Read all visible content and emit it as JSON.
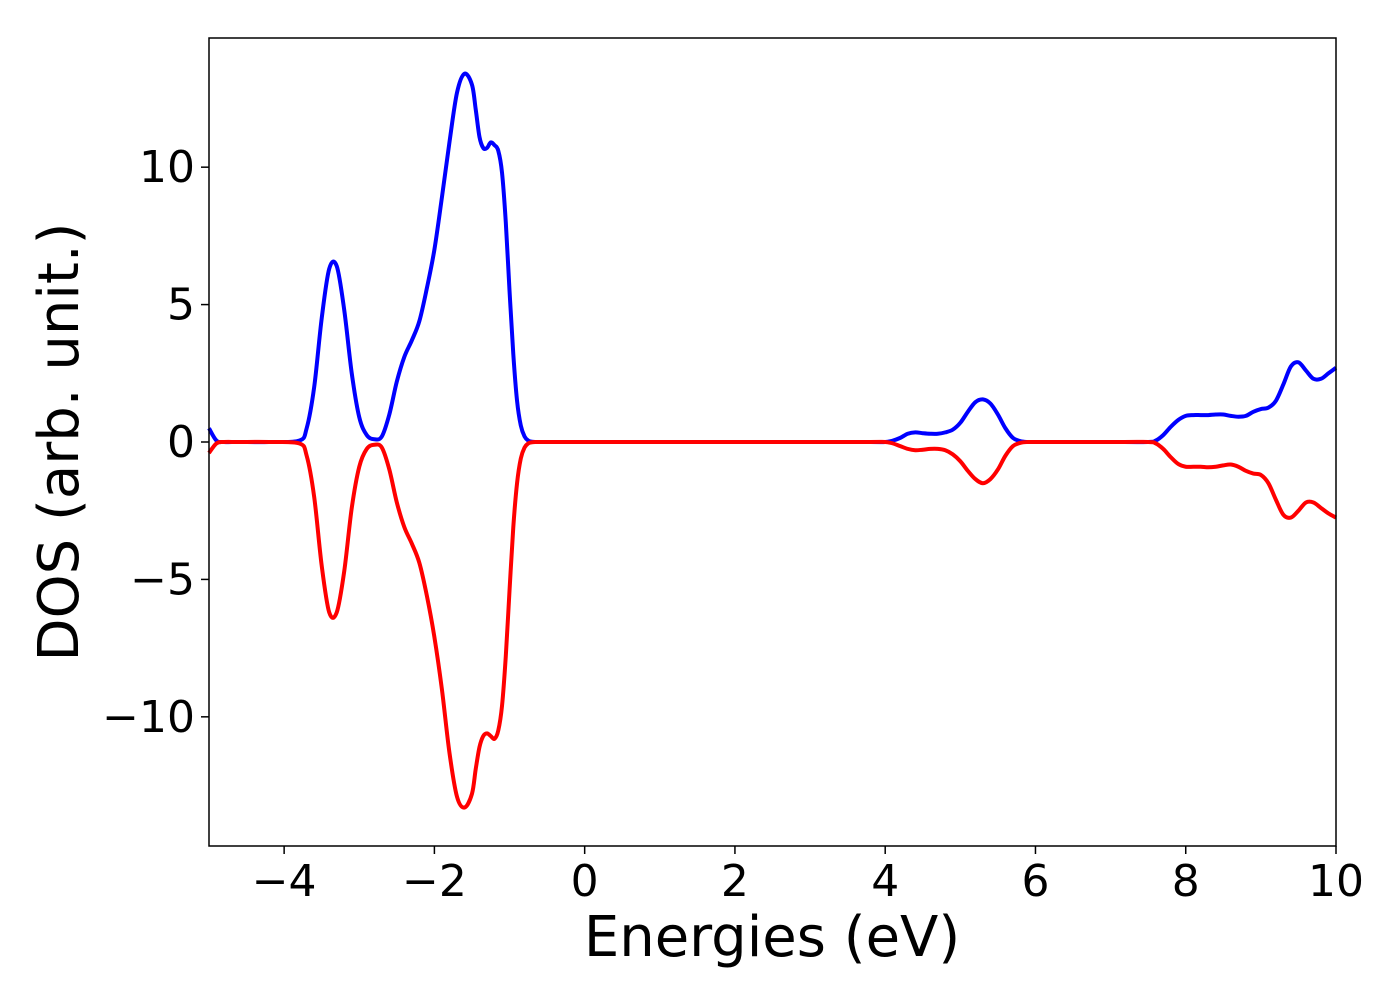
{
  "chart_data": {
    "type": "line",
    "xlabel": "Energies (eV)",
    "ylabel": "DOS (arb. unit.)",
    "xlim": [
      -5,
      10
    ],
    "ylim": [
      -14.7,
      14.7
    ],
    "grid": false,
    "x_ticks": [
      -4,
      -2,
      0,
      2,
      4,
      6,
      8,
      10
    ],
    "x_tick_labels": [
      "−4",
      "−2",
      "0",
      "2",
      "4",
      "6",
      "8",
      "10"
    ],
    "y_ticks": [
      -10,
      -5,
      0,
      5,
      10
    ],
    "y_tick_labels": [
      "−10",
      "−5",
      "0",
      "5",
      "10"
    ],
    "series": [
      {
        "color": "#0000ff",
        "x": [
          -5.0,
          -4.9,
          -4.8,
          -4.6,
          -4.2,
          -3.8,
          -3.7,
          -3.6,
          -3.5,
          -3.4,
          -3.3,
          -3.2,
          -3.1,
          -3.0,
          -2.9,
          -2.8,
          -2.7,
          -2.6,
          -2.5,
          -2.4,
          -2.3,
          -2.2,
          -2.1,
          -2.0,
          -1.9,
          -1.8,
          -1.7,
          -1.6,
          -1.5,
          -1.45,
          -1.4,
          -1.35,
          -1.3,
          -1.25,
          -1.2,
          -1.15,
          -1.1,
          -1.05,
          -1.0,
          -0.95,
          -0.9,
          -0.85,
          -0.8,
          -0.75,
          -0.7,
          -0.65,
          -0.6,
          -0.55,
          -0.5,
          -0.3,
          0.0,
          1.0,
          2.0,
          3.0,
          3.8,
          4.0,
          4.1,
          4.2,
          4.3,
          4.4,
          4.5,
          4.6,
          4.7,
          4.8,
          4.9,
          5.0,
          5.1,
          5.2,
          5.3,
          5.4,
          5.5,
          5.6,
          5.7,
          5.8,
          5.9,
          6.0,
          6.5,
          7.0,
          7.5,
          7.6,
          7.7,
          7.8,
          7.9,
          8.0,
          8.1,
          8.2,
          8.3,
          8.4,
          8.5,
          8.6,
          8.7,
          8.8,
          8.9,
          9.0,
          9.1,
          9.2,
          9.3,
          9.4,
          9.5,
          9.6,
          9.7,
          9.8,
          9.9,
          10.0
        ],
        "y": [
          0.5,
          0.05,
          0.0,
          0.0,
          0.0,
          0.05,
          0.5,
          2.0,
          4.5,
          6.3,
          6.4,
          4.8,
          2.5,
          0.9,
          0.25,
          0.1,
          0.2,
          1.0,
          2.2,
          3.1,
          3.7,
          4.4,
          5.6,
          7.0,
          8.9,
          10.9,
          12.7,
          13.4,
          13.0,
          12.1,
          11.1,
          10.7,
          10.7,
          10.9,
          10.8,
          10.6,
          9.8,
          8.0,
          5.5,
          3.2,
          1.5,
          0.6,
          0.2,
          0.05,
          0.01,
          0.0,
          0.0,
          0.0,
          0.0,
          0.0,
          0.0,
          0.0,
          0.0,
          0.0,
          0.0,
          0.0,
          0.05,
          0.15,
          0.3,
          0.35,
          0.32,
          0.3,
          0.3,
          0.35,
          0.45,
          0.7,
          1.1,
          1.45,
          1.55,
          1.4,
          1.0,
          0.5,
          0.15,
          0.03,
          0.0,
          0.0,
          0.0,
          0.0,
          0.0,
          0.05,
          0.25,
          0.55,
          0.8,
          0.95,
          0.98,
          0.98,
          0.98,
          1.0,
          1.0,
          0.95,
          0.92,
          0.95,
          1.1,
          1.2,
          1.25,
          1.5,
          2.1,
          2.75,
          2.9,
          2.6,
          2.3,
          2.3,
          2.5,
          2.7
        ]
      },
      {
        "color": "#ff0000",
        "x": [
          -5.0,
          -4.9,
          -4.8,
          -4.6,
          -4.2,
          -3.8,
          -3.7,
          -3.6,
          -3.5,
          -3.4,
          -3.3,
          -3.2,
          -3.1,
          -3.0,
          -2.9,
          -2.8,
          -2.7,
          -2.6,
          -2.5,
          -2.4,
          -2.3,
          -2.2,
          -2.1,
          -2.0,
          -1.9,
          -1.8,
          -1.7,
          -1.6,
          -1.5,
          -1.45,
          -1.4,
          -1.35,
          -1.3,
          -1.25,
          -1.2,
          -1.15,
          -1.1,
          -1.05,
          -1.0,
          -0.95,
          -0.9,
          -0.85,
          -0.8,
          -0.75,
          -0.7,
          -0.65,
          -0.6,
          -0.55,
          -0.5,
          -0.3,
          0.0,
          1.0,
          2.0,
          3.0,
          3.8,
          4.0,
          4.1,
          4.2,
          4.3,
          4.4,
          4.5,
          4.6,
          4.7,
          4.8,
          4.9,
          5.0,
          5.1,
          5.2,
          5.3,
          5.4,
          5.5,
          5.6,
          5.7,
          5.8,
          5.9,
          6.0,
          6.5,
          7.0,
          7.5,
          7.6,
          7.7,
          7.8,
          7.9,
          8.0,
          8.1,
          8.2,
          8.3,
          8.4,
          8.5,
          8.6,
          8.7,
          8.8,
          8.9,
          9.0,
          9.1,
          9.2,
          9.3,
          9.4,
          9.5,
          9.6,
          9.7,
          9.8,
          9.9,
          10.0
        ],
        "y": [
          -0.4,
          -0.05,
          0.0,
          0.0,
          0.0,
          -0.05,
          -0.5,
          -2.0,
          -4.5,
          -6.2,
          -6.2,
          -4.7,
          -2.4,
          -0.9,
          -0.25,
          -0.1,
          -0.2,
          -1.0,
          -2.2,
          -3.1,
          -3.7,
          -4.4,
          -5.6,
          -7.1,
          -9.0,
          -11.3,
          -12.9,
          -13.3,
          -12.8,
          -11.9,
          -11.1,
          -10.7,
          -10.6,
          -10.7,
          -10.8,
          -10.5,
          -9.6,
          -7.8,
          -5.4,
          -3.1,
          -1.5,
          -0.6,
          -0.2,
          -0.05,
          -0.01,
          0.0,
          0.0,
          0.0,
          0.0,
          0.0,
          0.0,
          0.0,
          0.0,
          0.0,
          0.0,
          0.0,
          -0.05,
          -0.15,
          -0.25,
          -0.3,
          -0.28,
          -0.25,
          -0.25,
          -0.3,
          -0.45,
          -0.7,
          -1.05,
          -1.35,
          -1.5,
          -1.35,
          -1.0,
          -0.5,
          -0.15,
          -0.03,
          0.0,
          0.0,
          0.0,
          0.0,
          0.0,
          -0.05,
          -0.25,
          -0.55,
          -0.8,
          -0.9,
          -0.9,
          -0.9,
          -0.92,
          -0.9,
          -0.85,
          -0.82,
          -0.9,
          -1.05,
          -1.15,
          -1.2,
          -1.5,
          -2.1,
          -2.65,
          -2.75,
          -2.5,
          -2.2,
          -2.2,
          -2.4,
          -2.6,
          -2.75
        ]
      }
    ]
  }
}
